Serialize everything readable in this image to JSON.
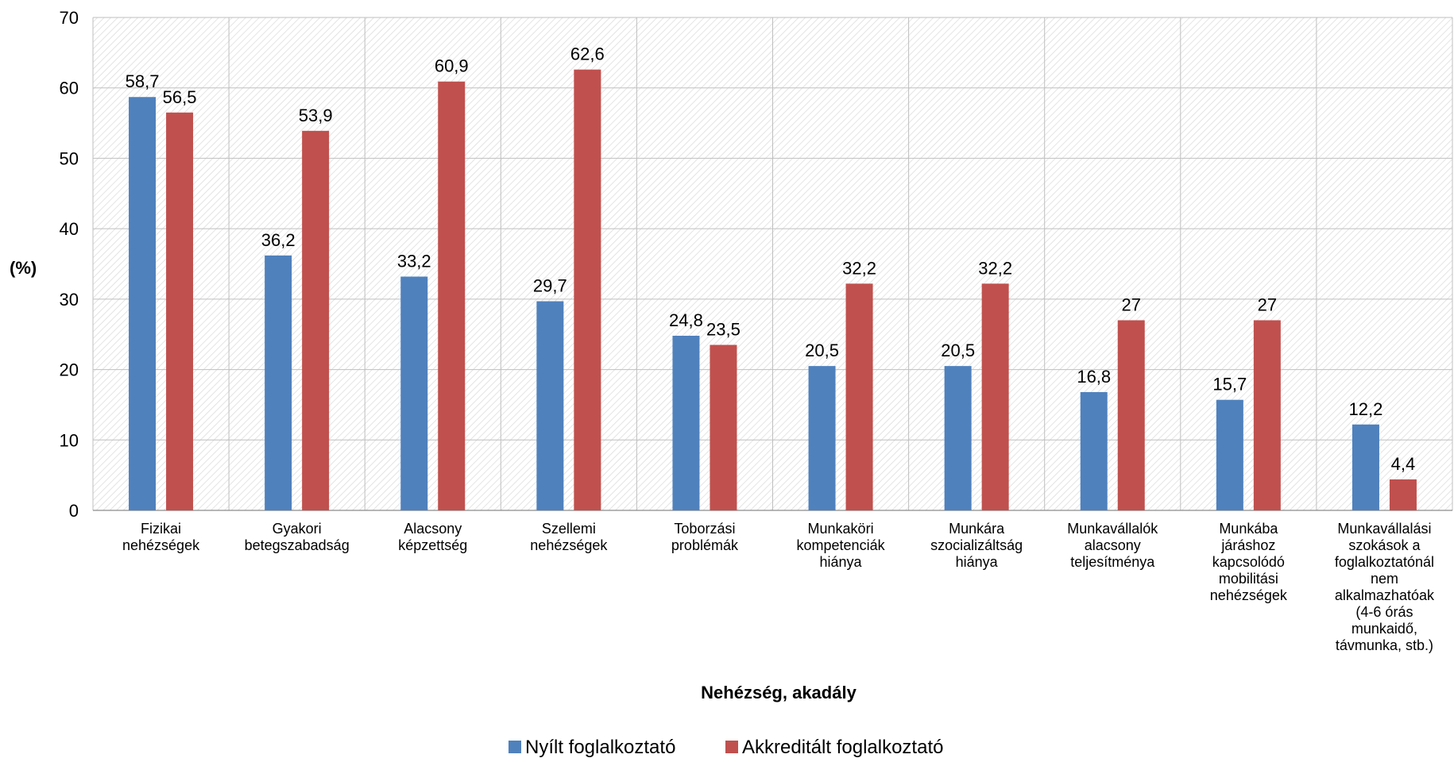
{
  "chart_data": {
    "type": "bar",
    "title": "",
    "xlabel": "Nehézség, akadály",
    "ylabel": "(%)",
    "ylim": [
      0,
      70
    ],
    "yticks": [
      0,
      10,
      20,
      30,
      40,
      50,
      60,
      70
    ],
    "grid": true,
    "legend_position": "bottom",
    "categories": [
      [
        "Fizikai",
        "nehézségek"
      ],
      [
        "Gyakori",
        "betegszabadság"
      ],
      [
        "Alacsony",
        "képzettség"
      ],
      [
        "Szellemi",
        "nehézségek"
      ],
      [
        "Toborzási",
        "problémák"
      ],
      [
        "Munkaköri",
        "kompetenciák",
        "hiánya"
      ],
      [
        "Munkára",
        "szocializáltság",
        "hiánya"
      ],
      [
        "Munkavállalók",
        "alacsony",
        "teljesítménya"
      ],
      [
        "Munkába",
        "járáshoz",
        "kapcsolódó",
        "mobilitási",
        "nehézségek"
      ],
      [
        "Munkavállalási",
        "szokások a",
        "foglalkoztatónál",
        "nem",
        "alkalmazhatóak",
        "(4-6 órás",
        "munkaidő,",
        "távmunka, stb.)"
      ]
    ],
    "series": [
      {
        "name": "Nyílt foglalkoztató",
        "color": "#4F81BD",
        "values": [
          58.7,
          36.2,
          33.2,
          29.7,
          24.8,
          20.5,
          20.5,
          16.8,
          15.7,
          12.2
        ],
        "labels": [
          "58,7",
          "36,2",
          "33,2",
          "29,7",
          "24,8",
          "20,5",
          "20,5",
          "16,8",
          "15,7",
          "12,2"
        ]
      },
      {
        "name": "Akkreditált foglalkoztató",
        "color": "#C0504D",
        "values": [
          56.5,
          53.9,
          60.9,
          62.6,
          23.5,
          32.2,
          32.2,
          27,
          27,
          4.4
        ],
        "labels": [
          "56,5",
          "53,9",
          "60,9",
          "62,6",
          "23,5",
          "32,2",
          "32,2",
          "27",
          "27",
          "4,4"
        ]
      }
    ]
  }
}
